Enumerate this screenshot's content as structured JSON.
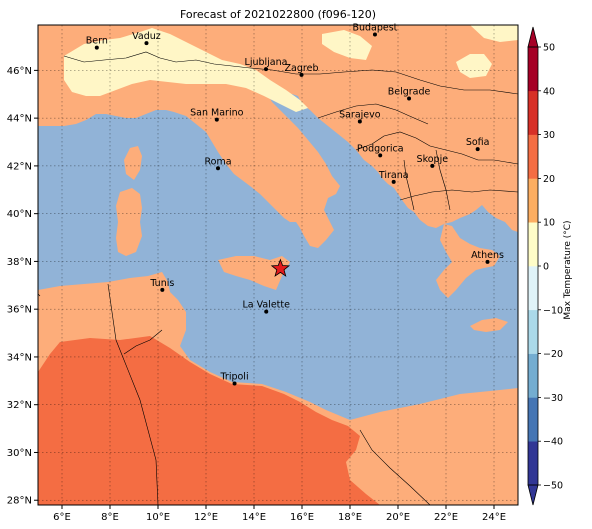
{
  "title": "Forecast of 2021022800 (f096-120)",
  "colorbar": {
    "label": "Max Temperature (°C)",
    "min": -50,
    "max": 50,
    "step": 10,
    "tick_labels": [
      "50",
      "40",
      "30",
      "20",
      "10",
      "0",
      "−10",
      "−20",
      "−30",
      "−40",
      "−50"
    ],
    "level_colors": [
      "#313695",
      "#4575b4",
      "#74add1",
      "#abd9e9",
      "#e0f3f8",
      "#fffdc8",
      "#fdae61",
      "#f46d43",
      "#d73027",
      "#a50026"
    ],
    "extend": "both"
  },
  "map": {
    "lon_range": [
      5,
      25
    ],
    "lat_range": [
      27.8,
      47.9
    ],
    "lon_ticks": [
      "6°E",
      "8°E",
      "10°E",
      "12°E",
      "14°E",
      "16°E",
      "18°E",
      "20°E",
      "22°E",
      "24°E"
    ],
    "lat_ticks": [
      "28°N",
      "30°N",
      "32°N",
      "34°N",
      "36°N",
      "38°N",
      "40°N",
      "42°N",
      "44°N",
      "46°N"
    ],
    "colors": {
      "sea": "#91b3d7",
      "land_mild": "#fdad7a",
      "land_warm": "#f46d43",
      "land_cool": "#fff6c6"
    },
    "marker": {
      "lon": 15.1,
      "lat": 37.7,
      "color": "#e31a1c"
    }
  },
  "cities": [
    {
      "name": "Bern",
      "lon": 7.45,
      "lat": 46.95
    },
    {
      "name": "Vaduz",
      "lon": 9.52,
      "lat": 47.14
    },
    {
      "name": "Budapest",
      "lon": 19.04,
      "lat": 47.5
    },
    {
      "name": "Ljubljana",
      "lon": 14.5,
      "lat": 46.05
    },
    {
      "name": "Zagreb",
      "lon": 15.98,
      "lat": 45.81
    },
    {
      "name": "Belgrade",
      "lon": 20.46,
      "lat": 44.82
    },
    {
      "name": "San Marino",
      "lon": 12.45,
      "lat": 43.94
    },
    {
      "name": "Sarajevo",
      "lon": 18.41,
      "lat": 43.86
    },
    {
      "name": "Sofia",
      "lon": 23.32,
      "lat": 42.7
    },
    {
      "name": "Podgorica",
      "lon": 19.26,
      "lat": 42.44
    },
    {
      "name": "Skopje",
      "lon": 21.43,
      "lat": 42.0
    },
    {
      "name": "Roma",
      "lon": 12.5,
      "lat": 41.9
    },
    {
      "name": "Tirana",
      "lon": 19.82,
      "lat": 41.33
    },
    {
      "name": "Athens",
      "lon": 23.73,
      "lat": 37.98
    },
    {
      "name": "Tunis",
      "lon": 10.18,
      "lat": 36.81
    },
    {
      "name": "La Valette",
      "lon": 14.51,
      "lat": 35.9
    },
    {
      "name": "Tripoli",
      "lon": 13.19,
      "lat": 32.89
    }
  ]
}
